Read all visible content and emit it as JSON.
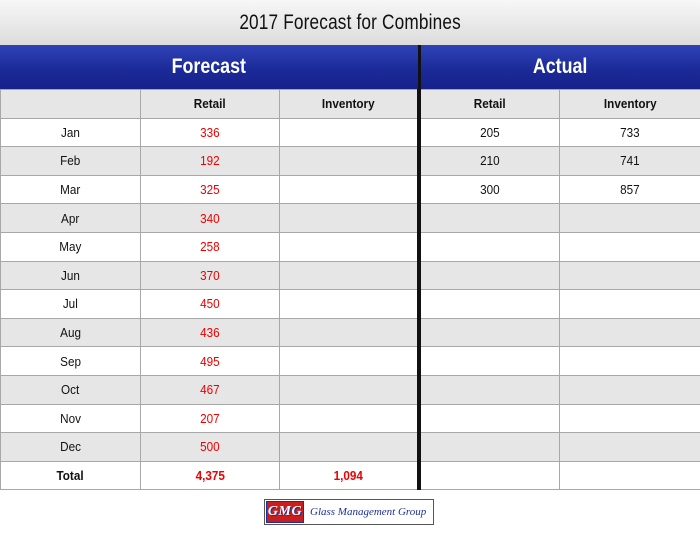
{
  "title": "2017 Forecast for Combines",
  "sections": {
    "forecast": "Forecast",
    "actual": "Actual"
  },
  "columns": {
    "retail": "Retail",
    "inventory": "Inventory"
  },
  "rows": [
    {
      "month": "Jan",
      "forecast_retail": "336",
      "forecast_inventory": "",
      "actual_retail": "205",
      "actual_inventory": "733"
    },
    {
      "month": "Feb",
      "forecast_retail": "192",
      "forecast_inventory": "",
      "actual_retail": "210",
      "actual_inventory": "741"
    },
    {
      "month": "Mar",
      "forecast_retail": "325",
      "forecast_inventory": "",
      "actual_retail": "300",
      "actual_inventory": "857"
    },
    {
      "month": "Apr",
      "forecast_retail": "340",
      "forecast_inventory": "",
      "actual_retail": "",
      "actual_inventory": ""
    },
    {
      "month": "May",
      "forecast_retail": "258",
      "forecast_inventory": "",
      "actual_retail": "",
      "actual_inventory": ""
    },
    {
      "month": "Jun",
      "forecast_retail": "370",
      "forecast_inventory": "",
      "actual_retail": "",
      "actual_inventory": ""
    },
    {
      "month": "Jul",
      "forecast_retail": "450",
      "forecast_inventory": "",
      "actual_retail": "",
      "actual_inventory": ""
    },
    {
      "month": "Aug",
      "forecast_retail": "436",
      "forecast_inventory": "",
      "actual_retail": "",
      "actual_inventory": ""
    },
    {
      "month": "Sep",
      "forecast_retail": "495",
      "forecast_inventory": "",
      "actual_retail": "",
      "actual_inventory": ""
    },
    {
      "month": "Oct",
      "forecast_retail": "467",
      "forecast_inventory": "",
      "actual_retail": "",
      "actual_inventory": ""
    },
    {
      "month": "Nov",
      "forecast_retail": "207",
      "forecast_inventory": "",
      "actual_retail": "",
      "actual_inventory": ""
    },
    {
      "month": "Dec",
      "forecast_retail": "500",
      "forecast_inventory": "",
      "actual_retail": "",
      "actual_inventory": ""
    }
  ],
  "total": {
    "label": "Total",
    "forecast_retail": "4,375",
    "forecast_inventory": "1,094",
    "actual_retail": "",
    "actual_inventory": ""
  },
  "logo": {
    "mark": "GMG",
    "name": "Glass Management Group"
  },
  "colors": {
    "header_blue": "#1c2a99",
    "forecast_red": "#ee0000",
    "row_shade": "#e6e6e6"
  }
}
